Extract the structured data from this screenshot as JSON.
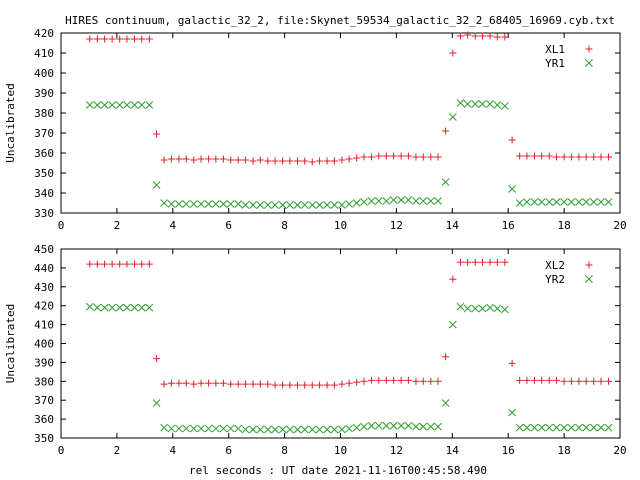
{
  "title": "HIRES continuum, galactic_32_2, file:Skynet_59534_galactic_32_2_68405_16969.cyb.txt",
  "xlabel": "rel seconds : UT date 2021-11-16T00:45:58.490",
  "colors": {
    "series_red": "#e0202a",
    "series_green": "#2ca02c",
    "axis": "#000000",
    "background": "#ffffff"
  },
  "chart_data": [
    {
      "type": "scatter",
      "ylabel": "Uncalibrated",
      "xlim": [
        0,
        20
      ],
      "ylim": [
        330,
        420
      ],
      "xticks": [
        0,
        2,
        4,
        6,
        8,
        10,
        12,
        14,
        16,
        18,
        20
      ],
      "yticks": [
        330,
        340,
        350,
        360,
        370,
        380,
        390,
        400,
        410,
        420
      ],
      "legend_position": "top-right",
      "series": [
        {
          "name": "XL1",
          "marker": "plus",
          "color": "#e0202a",
          "x": [
            1.03,
            1.3,
            1.56,
            1.83,
            2.1,
            2.36,
            2.63,
            2.89,
            3.16,
            3.42,
            3.69,
            3.95,
            4.22,
            4.48,
            4.75,
            5.01,
            5.28,
            5.54,
            5.81,
            6.07,
            6.34,
            6.6,
            6.87,
            7.13,
            7.4,
            7.66,
            7.93,
            8.19,
            8.46,
            8.72,
            8.99,
            9.25,
            9.52,
            9.78,
            10.05,
            10.31,
            10.58,
            10.84,
            11.11,
            11.37,
            11.64,
            11.9,
            12.17,
            12.43,
            12.7,
            12.96,
            13.23,
            13.49,
            13.76,
            14.02,
            14.29,
            14.55,
            14.82,
            15.08,
            15.35,
            15.61,
            15.88,
            16.14,
            16.41,
            16.67,
            16.94,
            17.2,
            17.47,
            17.73,
            18.0,
            18.26,
            18.53,
            18.79,
            19.06,
            19.32,
            19.59
          ],
          "y": [
            417.0,
            417.0,
            417.0,
            417.0,
            417.0,
            417.0,
            417.0,
            417.0,
            417.0,
            369.5,
            356.5,
            357.0,
            357.0,
            357.0,
            356.5,
            357.0,
            357.0,
            357.0,
            357.0,
            356.5,
            356.5,
            356.5,
            356.0,
            356.5,
            356.0,
            356.0,
            356.0,
            356.0,
            356.0,
            356.0,
            355.5,
            356.0,
            356.0,
            356.0,
            356.5,
            357.0,
            357.5,
            358.0,
            358.0,
            358.5,
            358.5,
            358.5,
            358.5,
            358.5,
            358.0,
            358.0,
            358.0,
            358.0,
            371.0,
            410.0,
            418.5,
            419.0,
            418.5,
            418.5,
            418.5,
            418.0,
            418.0,
            366.5,
            358.5,
            358.5,
            358.5,
            358.5,
            358.5,
            358.0,
            358.0,
            358.0,
            358.0,
            358.0,
            358.0,
            358.0,
            358.0
          ]
        },
        {
          "name": "YR1",
          "marker": "cross",
          "color": "#2ca02c",
          "x": [
            1.03,
            1.3,
            1.56,
            1.83,
            2.1,
            2.36,
            2.63,
            2.89,
            3.16,
            3.42,
            3.69,
            3.95,
            4.22,
            4.48,
            4.75,
            5.01,
            5.28,
            5.54,
            5.81,
            6.07,
            6.34,
            6.6,
            6.87,
            7.13,
            7.4,
            7.66,
            7.93,
            8.19,
            8.46,
            8.72,
            8.99,
            9.25,
            9.52,
            9.78,
            10.05,
            10.31,
            10.58,
            10.84,
            11.11,
            11.37,
            11.64,
            11.9,
            12.17,
            12.43,
            12.7,
            12.96,
            13.23,
            13.49,
            13.76,
            14.02,
            14.29,
            14.55,
            14.82,
            15.08,
            15.35,
            15.61,
            15.88,
            16.14,
            16.41,
            16.67,
            16.94,
            17.2,
            17.47,
            17.73,
            18.0,
            18.26,
            18.53,
            18.79,
            19.06,
            19.32,
            19.59
          ],
          "y": [
            384.0,
            384.0,
            384.0,
            384.0,
            384.0,
            384.0,
            384.0,
            384.0,
            384.0,
            344.0,
            335.0,
            334.5,
            334.5,
            334.5,
            334.5,
            334.5,
            334.5,
            334.5,
            334.5,
            334.5,
            334.5,
            334.0,
            334.0,
            334.0,
            334.0,
            334.0,
            334.0,
            334.0,
            334.0,
            334.0,
            334.0,
            334.0,
            334.0,
            334.0,
            334.0,
            334.5,
            335.0,
            335.5,
            336.0,
            336.0,
            336.0,
            336.5,
            336.5,
            336.5,
            336.0,
            336.0,
            336.0,
            336.0,
            345.5,
            378.0,
            385.0,
            384.5,
            384.5,
            384.5,
            384.5,
            384.0,
            383.5,
            342.0,
            335.0,
            335.5,
            335.5,
            335.5,
            335.5,
            335.5,
            335.5,
            335.5,
            335.5,
            335.5,
            335.5,
            335.5,
            335.5
          ]
        }
      ]
    },
    {
      "type": "scatter",
      "ylabel": "Uncalibrated",
      "xlim": [
        0,
        20
      ],
      "ylim": [
        350,
        450
      ],
      "xticks": [
        0,
        2,
        4,
        6,
        8,
        10,
        12,
        14,
        16,
        18,
        20
      ],
      "yticks": [
        350,
        360,
        370,
        380,
        390,
        400,
        410,
        420,
        430,
        440,
        450
      ],
      "legend_position": "top-right",
      "series": [
        {
          "name": "XL2",
          "marker": "plus",
          "color": "#e0202a",
          "x": [
            1.03,
            1.3,
            1.56,
            1.83,
            2.1,
            2.36,
            2.63,
            2.89,
            3.16,
            3.42,
            3.69,
            3.95,
            4.22,
            4.48,
            4.75,
            5.01,
            5.28,
            5.54,
            5.81,
            6.07,
            6.34,
            6.6,
            6.87,
            7.13,
            7.4,
            7.66,
            7.93,
            8.19,
            8.46,
            8.72,
            8.99,
            9.25,
            9.52,
            9.78,
            10.05,
            10.31,
            10.58,
            10.84,
            11.11,
            11.37,
            11.64,
            11.9,
            12.17,
            12.43,
            12.7,
            12.96,
            13.23,
            13.49,
            13.76,
            14.02,
            14.29,
            14.55,
            14.82,
            15.08,
            15.35,
            15.61,
            15.88,
            16.14,
            16.41,
            16.67,
            16.94,
            17.2,
            17.47,
            17.73,
            18.0,
            18.26,
            18.53,
            18.79,
            19.06,
            19.32,
            19.59
          ],
          "y": [
            442.0,
            442.0,
            442.0,
            442.0,
            442.0,
            442.0,
            442.0,
            442.0,
            442.0,
            392.0,
            378.5,
            379.0,
            379.0,
            379.0,
            378.5,
            379.0,
            379.0,
            379.0,
            379.0,
            378.5,
            378.5,
            378.5,
            378.5,
            378.5,
            378.5,
            378.0,
            378.0,
            378.0,
            378.0,
            378.0,
            378.0,
            378.0,
            378.0,
            378.0,
            378.5,
            379.0,
            379.5,
            380.0,
            380.5,
            380.5,
            380.5,
            380.5,
            380.5,
            380.5,
            380.0,
            380.0,
            380.0,
            380.0,
            393.0,
            434.0,
            443.0,
            443.0,
            443.0,
            443.0,
            443.0,
            443.0,
            443.0,
            389.5,
            380.5,
            380.5,
            380.5,
            380.5,
            380.5,
            380.5,
            380.0,
            380.0,
            380.0,
            380.0,
            380.0,
            380.0,
            380.0
          ]
        },
        {
          "name": "YR2",
          "marker": "cross",
          "color": "#2ca02c",
          "x": [
            1.03,
            1.3,
            1.56,
            1.83,
            2.1,
            2.36,
            2.63,
            2.89,
            3.16,
            3.42,
            3.69,
            3.95,
            4.22,
            4.48,
            4.75,
            5.01,
            5.28,
            5.54,
            5.81,
            6.07,
            6.34,
            6.6,
            6.87,
            7.13,
            7.4,
            7.66,
            7.93,
            8.19,
            8.46,
            8.72,
            8.99,
            9.25,
            9.52,
            9.78,
            10.05,
            10.31,
            10.58,
            10.84,
            11.11,
            11.37,
            11.64,
            11.9,
            12.17,
            12.43,
            12.7,
            12.96,
            13.23,
            13.49,
            13.76,
            14.02,
            14.29,
            14.55,
            14.82,
            15.08,
            15.35,
            15.61,
            15.88,
            16.14,
            16.41,
            16.67,
            16.94,
            17.2,
            17.47,
            17.73,
            18.0,
            18.26,
            18.53,
            18.79,
            19.06,
            19.32,
            19.59
          ],
          "y": [
            419.5,
            419.0,
            419.0,
            419.0,
            419.0,
            419.0,
            419.0,
            419.0,
            419.0,
            368.5,
            355.5,
            355.0,
            355.0,
            355.0,
            355.0,
            355.0,
            355.0,
            355.0,
            355.0,
            355.0,
            355.0,
            354.5,
            354.5,
            354.5,
            354.5,
            354.5,
            354.5,
            354.5,
            354.5,
            354.5,
            354.5,
            354.5,
            354.5,
            354.5,
            354.5,
            355.0,
            355.5,
            356.0,
            356.5,
            356.5,
            356.5,
            356.5,
            356.5,
            356.5,
            356.0,
            356.0,
            356.0,
            356.0,
            368.5,
            410.0,
            419.5,
            418.5,
            418.5,
            418.5,
            419.0,
            418.5,
            418.0,
            363.5,
            355.5,
            355.5,
            355.5,
            355.5,
            355.5,
            355.5,
            355.5,
            355.5,
            355.5,
            355.5,
            355.5,
            355.5,
            355.5
          ]
        }
      ]
    }
  ]
}
